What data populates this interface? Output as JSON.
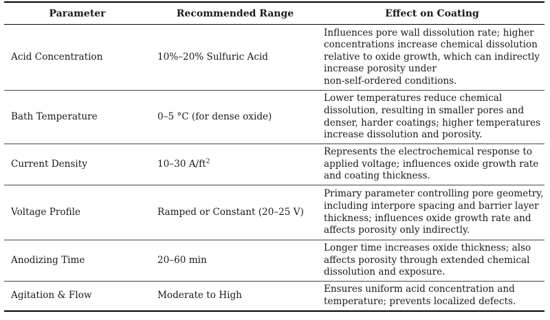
{
  "table": {
    "headers": [
      "Parameter",
      "Recommended Range",
      "Effect on Coating"
    ],
    "rows": [
      {
        "parameter": "Acid Concentration",
        "range": "10%–20% Sulfuric Acid",
        "effect_lines": [
          "Influences pore wall dissolution rate; higher",
          "concentrations increase chemical dissolution",
          "relative to oxide growth, which can indirectly",
          "increase porosity under",
          "non-self-ordered conditions."
        ]
      },
      {
        "parameter": "Bath Temperature",
        "range": "0–5 °C (for dense oxide)",
        "effect_lines": [
          "Lower temperatures reduce chemical",
          "dissolution, resulting in smaller pores and",
          "denser, harder coatings; higher temperatures",
          "increase dissolution and porosity."
        ]
      },
      {
        "parameter": "Current Density",
        "range": "10–30 A/ft",
        "range_sup": "2",
        "effect_lines": [
          "Represents the electrochemical response to",
          "applied voltage; influences oxide growth rate",
          "and coating thickness."
        ]
      },
      {
        "parameter": "Voltage Profile",
        "range": "Ramped or Constant (20–25 V)",
        "effect_lines": [
          "Primary parameter controlling pore geometry,",
          "including interpore spacing and barrier layer",
          "thickness; influences oxide growth rate and",
          "affects porosity only indirectly."
        ]
      },
      {
        "parameter": "Anodizing Time",
        "range": "20–60 min",
        "effect_lines": [
          "Longer time increases oxide thickness; also",
          "affects porosity through extended chemical",
          "dissolution and exposure."
        ]
      },
      {
        "parameter": "Agitation & Flow",
        "range": "Moderate to High",
        "effect_lines": [
          "Ensures uniform acid concentration and",
          "temperature; prevents localized defects."
        ]
      }
    ]
  }
}
